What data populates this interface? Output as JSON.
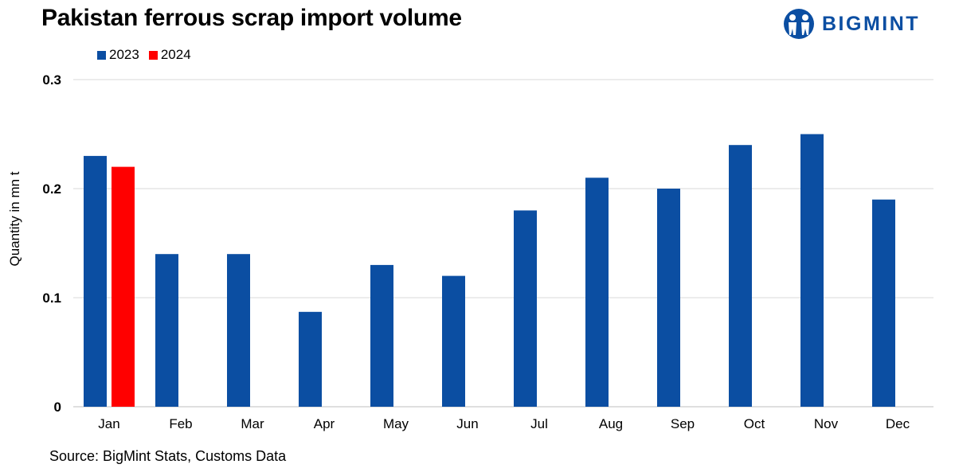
{
  "title": "Pakistan ferrous scrap import volume",
  "brand": {
    "name": "BIGMINT",
    "color": "#0b4ea2",
    "icon": "bigmint-people-icon"
  },
  "source": "Source: BigMint Stats, Customs Data",
  "chart_data": {
    "type": "bar",
    "title": "Pakistan ferrous scrap import volume",
    "xlabel": "",
    "ylabel": "Quantity in mn t",
    "ylim": [
      0,
      0.3
    ],
    "yticks": [
      0,
      0.1,
      0.2,
      0.3
    ],
    "ytick_labels": [
      "0",
      "0.1",
      "0.2",
      "0.3"
    ],
    "grid": true,
    "legend_position": "top-left",
    "categories": [
      "Jan",
      "Feb",
      "Mar",
      "Apr",
      "May",
      "Jun",
      "Jul",
      "Aug",
      "Sep",
      "Oct",
      "Nov",
      "Dec"
    ],
    "series": [
      {
        "name": "2023",
        "color": "#0b4ea2",
        "values": [
          0.23,
          0.14,
          0.14,
          0.087,
          0.13,
          0.12,
          0.18,
          0.21,
          0.2,
          0.24,
          0.25,
          0.19
        ]
      },
      {
        "name": "2024",
        "color": "#ff0000",
        "values": [
          0.22,
          null,
          null,
          null,
          null,
          null,
          null,
          null,
          null,
          null,
          null,
          null
        ]
      }
    ]
  }
}
